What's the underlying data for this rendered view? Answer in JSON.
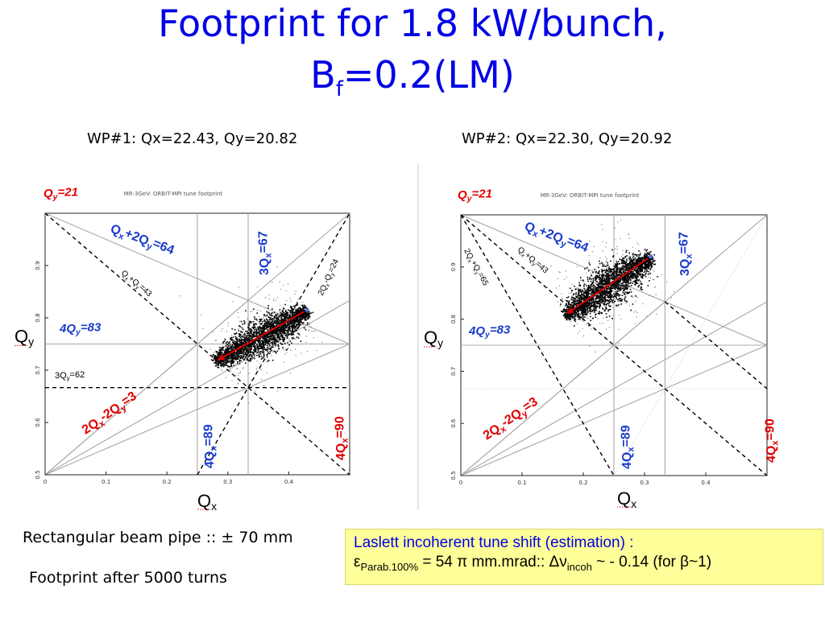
{
  "title": {
    "line1": "Footprint for 1.8 kW/bunch,",
    "line2_base": "B",
    "line2_sub": "f",
    "line2_rest": "=0.2(LM)"
  },
  "wp1": "WP#1: Qx=22.43, Qy=20.82",
  "wp2": "WP#2: Qx=22.30, Qy=20.92",
  "plots": {
    "header": "MR-3GeV: ORBIT-MPI tune footprint",
    "x_ticks": [
      "0",
      "0.1",
      "0.2",
      "0.3",
      "0.4"
    ],
    "y_ticks": [
      "0.5",
      "0.6",
      "0.7",
      "0.8",
      "0.9"
    ],
    "x_axis": {
      "base": "Q",
      "sub": "x"
    },
    "y_axis": {
      "base": "Q",
      "sub": "y"
    },
    "resonances": {
      "qy21": {
        "base": "Q",
        "sub": "y",
        "rest": "=21"
      },
      "qx2qy64": "Q_x+2Q_y=64",
      "qx3_67": "3Q_x=67",
      "qy4_83": "4Q_y=83",
      "qxqy43": "Q_x+Q_y=43",
      "qx2qy3": "2Q_x-2Q_y=3",
      "qx4_89": "4Q_x=89",
      "qx4_90": "4Q_x=90",
      "qxqy24": "2Q_x-Q_y=24",
      "qy3_62": "3Q_y=62",
      "qxqy65": "2Q_x+Q_y=65"
    }
  },
  "notes": {
    "pipe": "Rectangular beam pipe :: ± 70 mm",
    "turns": "Footprint after 5000 turns"
  },
  "laslett": {
    "line1": "Laslett incoherent tune shift (estimation) :",
    "eps": "ε",
    "eps_sub": "Parab.100%",
    "mid": " = 54 π mm.mrad::   Δν",
    "nu_sub": "incoh",
    "tail": " ~ - 0.14 (for β~1)"
  }
}
